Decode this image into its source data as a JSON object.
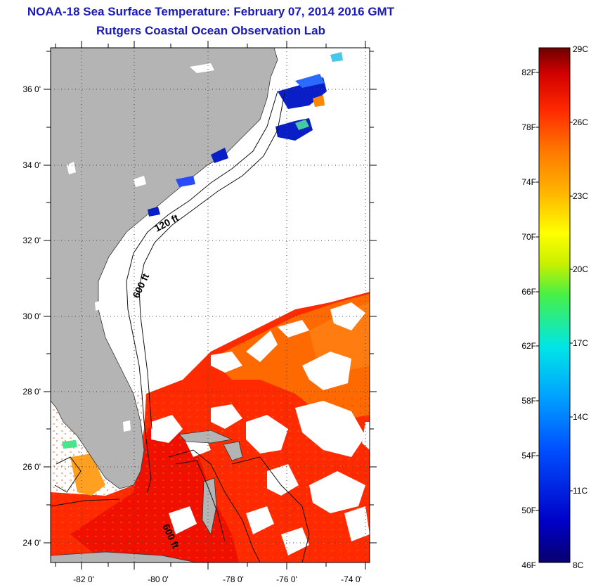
{
  "header": {
    "title_line1": "NOAA-18 Sea Surface Temperature:  February 07, 2014 2016 GMT",
    "title_line2": "Rutgers Coastal Ocean Observation Lab"
  },
  "axes": {
    "x_ticks": [
      "-82 0'",
      "-80 0'",
      "-78 0'",
      "-76 0'",
      "-74 0'"
    ],
    "y_ticks": [
      "36 0'",
      "34 0'",
      "32 0'",
      "30 0'",
      "28 0'",
      "26 0'",
      "24 0'"
    ]
  },
  "contours": {
    "label_120": "120 ft",
    "label_600_north": "600 ft",
    "label_600_south": "600 ft"
  },
  "colorbar": {
    "f_labels": [
      "82F",
      "78F",
      "74F",
      "70F",
      "66F",
      "62F",
      "58F",
      "54F",
      "50F",
      "46F"
    ],
    "c_labels": [
      "29C",
      "26C",
      "23C",
      "20C",
      "17C",
      "14C",
      "11C",
      "8C"
    ]
  },
  "colors": {
    "land": "#b4b4b4",
    "title": "#1a1ab4"
  }
}
